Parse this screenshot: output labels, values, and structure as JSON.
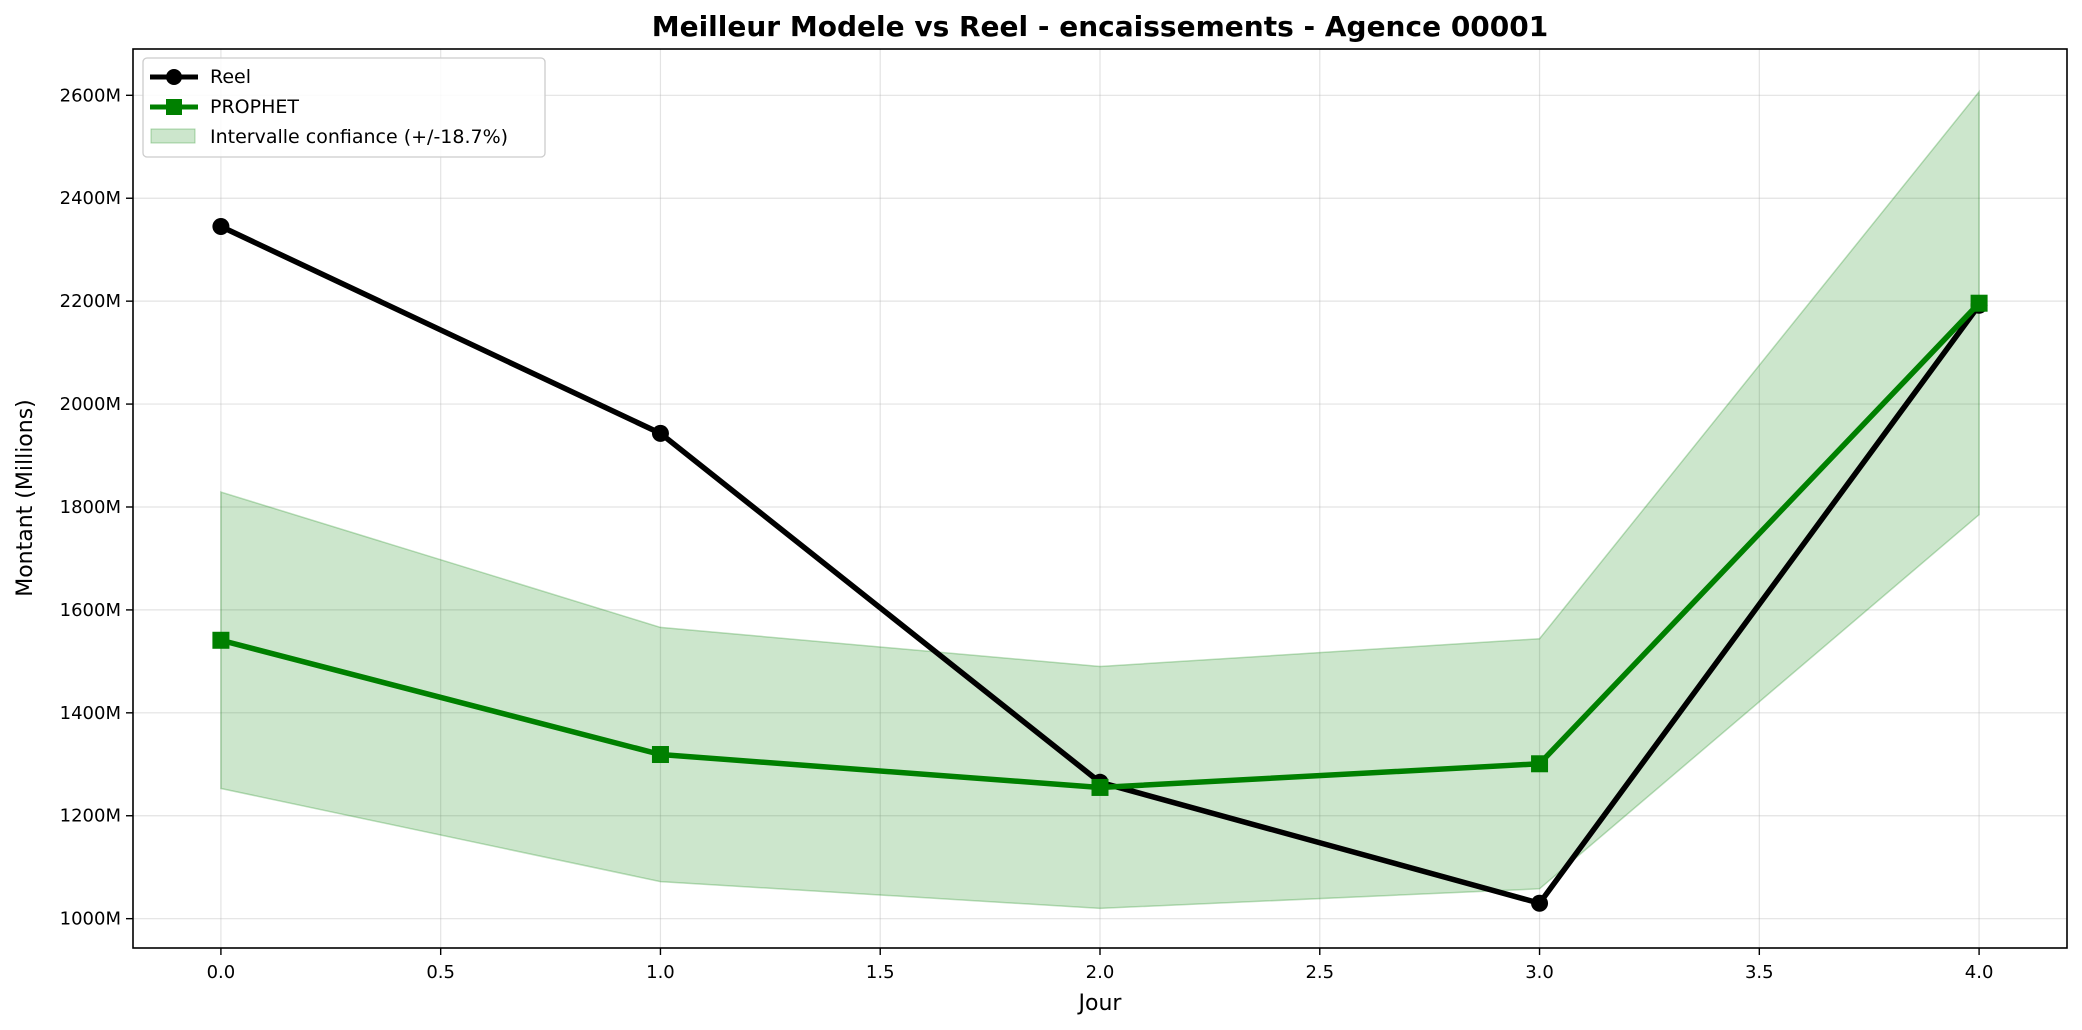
{
  "chart_data": {
    "type": "line",
    "title": "Meilleur Modele vs Reel - encaissements - Agence 00001",
    "xlabel": "Jour",
    "ylabel": "Montant (Millions)",
    "x": [
      0,
      1,
      2,
      3,
      4
    ],
    "xlim": [
      -0.2,
      4.2
    ],
    "ylim": [
      943,
      2690
    ],
    "x_ticks": [
      0,
      0.5,
      1,
      1.5,
      2,
      2.5,
      3,
      3.5,
      4
    ],
    "x_tick_labels": [
      "0.0",
      "0.5",
      "1.0",
      "1.5",
      "2.0",
      "2.5",
      "3.0",
      "3.5",
      "4.0"
    ],
    "y_ticks": [
      1000,
      1200,
      1400,
      1600,
      1800,
      2000,
      2200,
      2400,
      2600
    ],
    "y_tick_labels": [
      "1000M",
      "1200M",
      "1400M",
      "1600M",
      "1800M",
      "2000M",
      "2200M",
      "2400M",
      "2600M"
    ],
    "grid": true,
    "legend_position": "top-left",
    "series": [
      {
        "name": "Reel",
        "marker": "circle",
        "color": "#000000",
        "values": [
          2345,
          1943,
          1265,
          1030,
          2192
        ]
      },
      {
        "name": "PROPHET",
        "marker": "square",
        "color": "#008000",
        "values": [
          1541,
          1319,
          1255,
          1301,
          2196
        ]
      }
    ],
    "band": {
      "name": "Intervalle confiance (+/-18.7%)",
      "color": "#008000",
      "lower": [
        1253,
        1072,
        1020,
        1058,
        1785
      ],
      "upper": [
        1829,
        1566,
        1490,
        1544,
        2607
      ]
    }
  }
}
